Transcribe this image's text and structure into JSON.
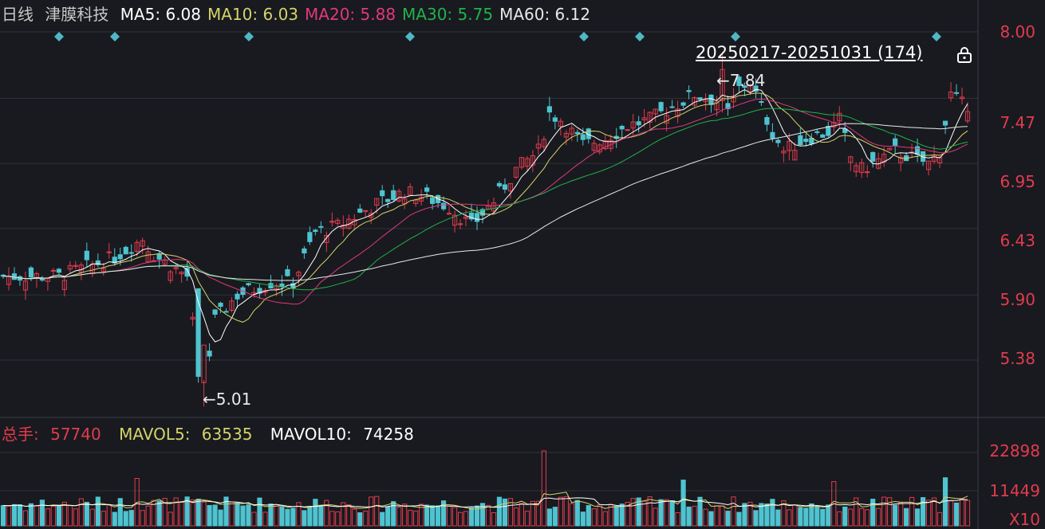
{
  "header": {
    "period": "日线",
    "stock_name": "津膜科技",
    "ma": [
      {
        "label": "MA5:",
        "value": "6.08",
        "color": "#ffffff"
      },
      {
        "label": "MA10:",
        "value": "6.03",
        "color": "#d6d36a"
      },
      {
        "label": "MA20:",
        "value": "5.88",
        "color": "#e0397a"
      },
      {
        "label": "MA30:",
        "value": "5.75",
        "color": "#22b14c"
      },
      {
        "label": "MA60:",
        "value": "6.12",
        "color": "#e8e8e8"
      }
    ]
  },
  "range": {
    "label": "20250217-20251031 (174)"
  },
  "lock_icon": "lock-icon",
  "annotations": {
    "high": "7.84",
    "low": "5.01"
  },
  "price_axis": [
    "8.00",
    "7.47",
    "6.95",
    "6.43",
    "5.90",
    "5.38"
  ],
  "volume_header": {
    "total_label": "总手:",
    "total_value": "57740",
    "mavol5_label": "MAVOL5:",
    "mavol5_value": "63535",
    "mavol10_label": "MAVOL10:",
    "mavol10_value": "74258"
  },
  "volume_axis": [
    "22898",
    "11449",
    "X10"
  ],
  "colors": {
    "up": "#e23b4e",
    "down": "#4fc3d0",
    "background": "#181a1f",
    "grid": "#2e3138",
    "marker": "#4fb8c4"
  },
  "chart_data": {
    "type": "candlestick",
    "period": "20250217-20251031",
    "count": 174,
    "ylim": [
      5.01,
      8.0
    ],
    "price_ticks": [
      8.0,
      7.47,
      6.95,
      6.43,
      5.9,
      5.38
    ],
    "volume_ticks": [
      22898,
      11449
    ],
    "high": 7.84,
    "low": 5.01,
    "last_ma": {
      "MA5": 6.08,
      "MA10": 6.03,
      "MA20": 5.88,
      "MA30": 5.75,
      "MA60": 6.12
    },
    "last_volume": {
      "total": 57740,
      "MAVOL5": 63535,
      "MAVOL10": 74258
    },
    "events": 9
  }
}
